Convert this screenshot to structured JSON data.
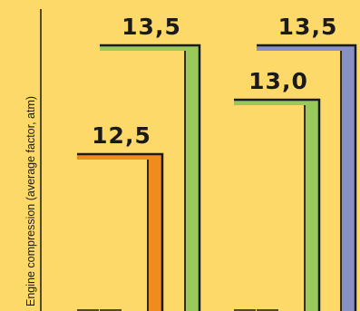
{
  "chart_data": {
    "type": "bar",
    "title": "",
    "xlabel": "",
    "ylabel": "Engine compression (average factor, atm)",
    "grid": false,
    "legend": "none",
    "series": [
      {
        "values": [
          12.5,
          13.5
        ],
        "color": "#f08c1e"
      },
      {
        "values": [
          13.0,
          13.5
        ],
        "color": "#99c95a"
      }
    ],
    "bars": [
      {
        "label": "12,5",
        "value": 12.5,
        "color": "#f08c1e",
        "data_label": "12,5"
      },
      {
        "label": "13,5",
        "value": 13.5,
        "color": "#99c95a",
        "data_label": "13,5"
      },
      {
        "label": "13,0",
        "value": 13.0,
        "color": "#99c95a",
        "data_label": "13,0"
      },
      {
        "label": "13,5",
        "value": 13.5,
        "color": "#8891c3",
        "data_label": "13,5"
      }
    ],
    "background": "#fdd96a"
  }
}
